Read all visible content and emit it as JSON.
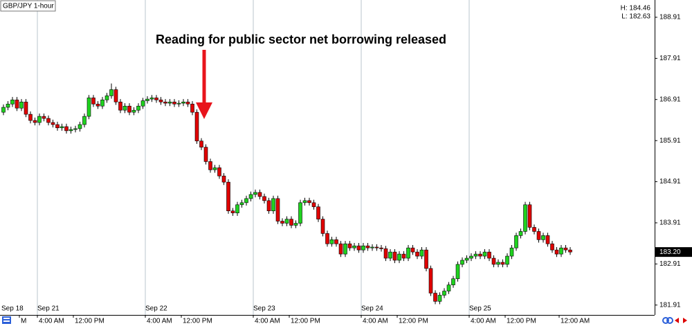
{
  "chart_data": {
    "type": "candlestick",
    "title": "GBP/JPY 1-hour",
    "high_label": "H: 184.46",
    "low_label": "L: 182.63",
    "annotation": "Reading for public sector net borrowing released",
    "up_color": "#1fd31f",
    "down_color": "#e00000",
    "ylim": [
      181.67,
      189.33
    ],
    "yticks": [
      181.91,
      182.91,
      183.91,
      184.91,
      185.91,
      186.91,
      187.91,
      188.91
    ],
    "last_price": {
      "value": 183.2,
      "label": "183.20"
    },
    "categories": [
      "Sep 18",
      null,
      null,
      null,
      null,
      null,
      null,
      null,
      "Sep 21",
      null,
      null,
      null,
      null,
      null,
      null,
      null,
      null,
      null,
      null,
      null,
      null,
      null,
      null,
      null,
      null,
      null,
      null,
      null,
      null,
      null,
      null,
      null,
      "Sep 22",
      null,
      null,
      null,
      null,
      null,
      null,
      null,
      null,
      null,
      null,
      null,
      null,
      null,
      null,
      null,
      null,
      null,
      null,
      null,
      null,
      null,
      null,
      null,
      "Sep 23",
      null,
      null,
      null,
      null,
      null,
      null,
      null,
      null,
      null,
      null,
      null,
      null,
      null,
      null,
      null,
      null,
      null,
      null,
      null,
      null,
      null,
      null,
      null,
      "Sep 24",
      null,
      null,
      null,
      null,
      null,
      null,
      null,
      null,
      null,
      null,
      null,
      null,
      null,
      null,
      null,
      null,
      null,
      null,
      null,
      null,
      null,
      null,
      null,
      "Sep 25",
      null,
      null,
      null,
      null,
      null,
      null,
      null,
      null,
      null,
      null,
      null,
      null,
      null,
      null,
      null,
      null,
      null,
      null,
      null,
      null,
      null,
      null
    ],
    "time_labels": [
      null,
      null,
      null,
      null,
      "M",
      null,
      null,
      null,
      "4:00 AM",
      null,
      null,
      null,
      null,
      null,
      null,
      null,
      "12:00 PM",
      null,
      null,
      null,
      null,
      null,
      null,
      null,
      null,
      null,
      null,
      null,
      null,
      null,
      null,
      null,
      "4:00 AM",
      null,
      null,
      null,
      null,
      null,
      null,
      null,
      "12:00 PM",
      null,
      null,
      null,
      null,
      null,
      null,
      null,
      null,
      null,
      null,
      null,
      null,
      null,
      null,
      null,
      "4:00 AM",
      null,
      null,
      null,
      null,
      null,
      null,
      null,
      "12:00 PM",
      null,
      null,
      null,
      null,
      null,
      null,
      null,
      null,
      null,
      null,
      null,
      null,
      null,
      null,
      null,
      "4:00 AM",
      null,
      null,
      null,
      null,
      null,
      null,
      null,
      "12:00 PM",
      null,
      null,
      null,
      null,
      null,
      null,
      null,
      null,
      null,
      null,
      null,
      null,
      null,
      null,
      null,
      "4:00 AM",
      null,
      null,
      null,
      null,
      null,
      null,
      null,
      "12:00 PM",
      null,
      null,
      null,
      null,
      null,
      null,
      null,
      null,
      null,
      null,
      null,
      "12:00 AM",
      null,
      null
    ],
    "open": [
      186.6,
      186.72,
      186.8,
      186.9,
      186.7,
      186.85,
      186.55,
      186.4,
      186.35,
      186.5,
      186.45,
      186.35,
      186.3,
      186.22,
      186.25,
      186.15,
      186.18,
      186.2,
      186.3,
      186.5,
      186.95,
      186.8,
      186.75,
      186.9,
      187.0,
      187.15,
      186.85,
      186.65,
      186.75,
      186.6,
      186.65,
      186.75,
      186.88,
      186.92,
      186.95,
      186.9,
      186.85,
      186.82,
      186.85,
      186.8,
      186.82,
      186.85,
      186.8,
      186.6,
      185.9,
      185.75,
      185.4,
      185.2,
      185.25,
      185.05,
      184.9,
      184.2,
      184.15,
      184.35,
      184.4,
      184.5,
      184.6,
      184.65,
      184.55,
      184.45,
      184.2,
      184.5,
      183.95,
      183.9,
      184.0,
      183.85,
      183.9,
      184.4,
      184.45,
      184.4,
      184.3,
      184.0,
      183.65,
      183.4,
      183.5,
      183.4,
      183.15,
      183.4,
      183.3,
      183.35,
      183.25,
      183.35,
      183.3,
      183.32,
      183.3,
      183.28,
      183.05,
      183.2,
      183.0,
      183.15,
      183.05,
      183.3,
      183.2,
      183.1,
      183.25,
      182.8,
      182.2,
      182.0,
      182.15,
      182.25,
      182.4,
      182.55,
      182.9,
      183.0,
      183.05,
      183.1,
      183.15,
      183.1,
      183.2,
      183.05,
      182.9,
      182.95,
      182.9,
      183.1,
      183.3,
      183.6,
      183.7,
      184.35,
      183.8,
      183.7,
      183.5,
      183.6,
      183.4,
      183.25,
      183.15,
      183.3,
      183.25
    ],
    "high": [
      186.79,
      186.87,
      186.97,
      186.97,
      186.92,
      186.92,
      186.62,
      186.47,
      186.57,
      186.57,
      186.52,
      186.42,
      186.37,
      186.32,
      186.32,
      186.25,
      186.27,
      186.37,
      186.57,
      187.02,
      187.02,
      186.87,
      186.97,
      187.07,
      187.3,
      187.22,
      186.92,
      186.82,
      186.82,
      186.72,
      186.82,
      186.95,
      186.99,
      187.02,
      187.02,
      186.97,
      186.92,
      186.92,
      186.92,
      186.89,
      186.92,
      186.92,
      186.87,
      186.67,
      185.97,
      185.82,
      185.47,
      185.32,
      185.32,
      185.12,
      184.97,
      184.27,
      184.42,
      184.47,
      184.57,
      184.67,
      184.72,
      184.72,
      184.62,
      184.52,
      184.57,
      184.57,
      184.02,
      184.07,
      184.07,
      183.97,
      184.47,
      184.52,
      184.52,
      184.47,
      184.37,
      184.07,
      183.72,
      183.57,
      183.57,
      183.47,
      183.47,
      183.47,
      183.42,
      183.42,
      183.42,
      183.42,
      183.39,
      183.39,
      183.37,
      183.35,
      183.27,
      183.27,
      183.22,
      183.22,
      183.37,
      183.37,
      183.27,
      183.32,
      183.32,
      182.87,
      182.27,
      182.22,
      182.32,
      182.47,
      182.62,
      182.97,
      183.07,
      183.12,
      183.17,
      183.22,
      183.22,
      183.27,
      183.27,
      183.12,
      183.02,
      183.02,
      183.17,
      183.37,
      183.67,
      183.77,
      184.42,
      184.42,
      183.87,
      183.77,
      183.67,
      183.67,
      183.47,
      183.32,
      183.37,
      183.37,
      183.32
    ],
    "low": [
      186.53,
      186.65,
      186.73,
      186.63,
      186.63,
      186.48,
      186.33,
      186.28,
      186.28,
      186.38,
      186.28,
      186.23,
      186.15,
      186.15,
      186.08,
      186.08,
      186.11,
      186.13,
      186.23,
      186.43,
      186.73,
      186.68,
      186.68,
      186.83,
      186.93,
      186.78,
      186.58,
      186.58,
      186.53,
      186.53,
      186.58,
      186.68,
      186.81,
      186.85,
      186.83,
      186.78,
      186.75,
      186.75,
      186.73,
      186.73,
      186.75,
      186.73,
      186.53,
      185.83,
      185.68,
      185.33,
      185.13,
      185.13,
      184.98,
      184.83,
      184.13,
      184.08,
      184.08,
      184.28,
      184.33,
      184.43,
      184.53,
      184.48,
      184.38,
      184.13,
      184.13,
      183.88,
      183.83,
      183.83,
      183.78,
      183.78,
      183.83,
      184.33,
      184.33,
      184.23,
      183.93,
      183.58,
      183.33,
      183.33,
      183.33,
      183.08,
      183.08,
      183.23,
      183.23,
      183.18,
      183.18,
      183.23,
      183.23,
      183.23,
      183.21,
      182.98,
      182.98,
      182.93,
      182.93,
      182.98,
      182.98,
      183.13,
      183.03,
      183.03,
      182.73,
      182.13,
      181.93,
      181.93,
      182.08,
      182.18,
      182.33,
      182.48,
      182.83,
      182.93,
      182.98,
      183.03,
      183.03,
      183.03,
      182.98,
      182.83,
      182.83,
      182.83,
      182.83,
      183.03,
      183.23,
      183.53,
      183.63,
      183.73,
      183.63,
      183.43,
      183.43,
      183.33,
      183.18,
      183.08,
      183.08,
      183.18,
      183.13
    ],
    "close": [
      186.72,
      186.8,
      186.9,
      186.7,
      186.85,
      186.55,
      186.4,
      186.35,
      186.5,
      186.45,
      186.35,
      186.3,
      186.22,
      186.25,
      186.15,
      186.18,
      186.2,
      186.3,
      186.5,
      186.95,
      186.8,
      186.75,
      186.9,
      187.0,
      187.15,
      186.85,
      186.65,
      186.75,
      186.6,
      186.65,
      186.75,
      186.88,
      186.92,
      186.95,
      186.9,
      186.85,
      186.82,
      186.85,
      186.8,
      186.82,
      186.85,
      186.8,
      186.6,
      185.9,
      185.75,
      185.4,
      185.2,
      185.25,
      185.05,
      184.9,
      184.2,
      184.15,
      184.35,
      184.4,
      184.5,
      184.6,
      184.65,
      184.55,
      184.45,
      184.2,
      184.5,
      183.95,
      183.9,
      184.0,
      183.85,
      183.9,
      184.4,
      184.45,
      184.4,
      184.3,
      184.0,
      183.65,
      183.4,
      183.5,
      183.4,
      183.15,
      183.4,
      183.3,
      183.35,
      183.25,
      183.35,
      183.3,
      183.32,
      183.3,
      183.28,
      183.05,
      183.2,
      183.0,
      183.15,
      183.05,
      183.3,
      183.2,
      183.1,
      183.25,
      182.8,
      182.2,
      182.0,
      182.15,
      182.25,
      182.4,
      182.55,
      182.9,
      183.0,
      183.05,
      183.1,
      183.15,
      183.1,
      183.2,
      183.05,
      182.9,
      182.95,
      182.9,
      183.1,
      183.3,
      183.6,
      183.7,
      184.35,
      183.8,
      183.7,
      183.5,
      183.6,
      183.4,
      183.25,
      183.15,
      183.3,
      183.25,
      183.2
    ]
  }
}
